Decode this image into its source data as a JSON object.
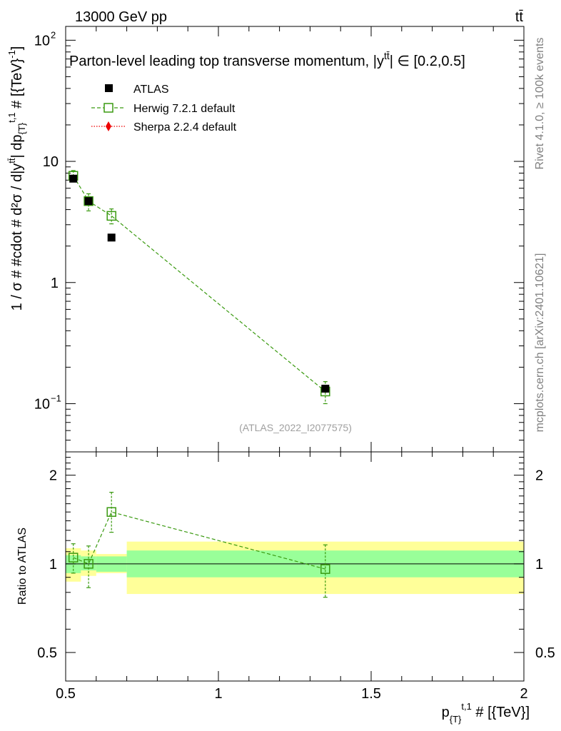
{
  "header": {
    "energy_label": "13000 GeV pp",
    "process_label": "tt̄"
  },
  "side_labels": {
    "rivet": "Rivet 4.1.0, ≥ 100k events",
    "mcplots": "mcplots.cern.ch [arXiv:2401.10621]"
  },
  "chart_data": {
    "type": "scatter",
    "title": "Parton-level leading top transverse momentum, |y^{tt̄}| ∈ [0.2,0.5]",
    "title_main": "Parton-level leading top transverse momentum, |y",
    "title_sup": "tt̄",
    "title_tail": "| ∈ [0.2,0.5]",
    "analysis_label": "(ATLAS_2022_I2077575)",
    "xlabel_main": "p",
    "xlabel_sub": "{T}",
    "xlabel_sup": "t,1",
    "xlabel_tail": " # [{TeV}]",
    "ylabel": "1 / σ # #cdot # d²σ / d|y^{tt̄}| dp_{T}^{t,1} # [{TeV}⁻¹]",
    "ylabel_text": "1 / σ # #cdot # d²σ / d|y",
    "ylabel_sup1": "tt̄",
    "ylabel_mid": "| dp",
    "ylabel_sub": "{T}",
    "ylabel_sup2": "t,1",
    "ylabel_tail": " # [{TeV}",
    "ylabel_sup3": "-1",
    "ylabel_end": "]",
    "ratio_ylabel": "Ratio to ATLAS",
    "xlim": [
      0.5,
      2.0
    ],
    "ylim": [
      0.04,
      130
    ],
    "yscale": "log",
    "ratio_ylim": [
      0.4,
      2.4
    ],
    "ratio_yscale": "log",
    "x_ticks": [
      {
        "value": 0.5,
        "label": "0.5"
      },
      {
        "value": 1.0,
        "label": "1"
      },
      {
        "value": 1.5,
        "label": "1.5"
      },
      {
        "value": 2.0,
        "label": "2"
      }
    ],
    "y_ticks": [
      {
        "value": 0.1,
        "base": "10",
        "exp": "−1"
      },
      {
        "value": 1,
        "base": "1",
        "exp": ""
      },
      {
        "value": 10,
        "base": "10",
        "exp": ""
      },
      {
        "value": 100,
        "base": "10",
        "exp": "2"
      }
    ],
    "ratio_ticks": [
      {
        "value": 0.5,
        "label": "0.5"
      },
      {
        "value": 1,
        "label": "1"
      },
      {
        "value": 2,
        "label": "2"
      }
    ],
    "legend": [
      {
        "name": "ATLAS",
        "style": "marker-square",
        "color": "#000000"
      },
      {
        "name": "Herwig 7.2.1 default",
        "style": "dashed-open-square",
        "color": "#3a9a10"
      },
      {
        "name": "Sherpa 2.2.4 default",
        "style": "dotted-diamond",
        "color": "#ee0000"
      }
    ],
    "bins": [
      {
        "xlow": 0.5,
        "xhigh": 0.55,
        "inner": [
          0.93,
          1.07
        ],
        "outer": [
          0.87,
          1.13
        ]
      },
      {
        "xlow": 0.55,
        "xhigh": 0.6,
        "inner": [
          0.95,
          1.06
        ],
        "outer": [
          0.91,
          1.11
        ]
      },
      {
        "xlow": 0.6,
        "xhigh": 0.7,
        "inner": [
          0.94,
          1.06
        ],
        "outer": [
          0.93,
          1.08
        ]
      },
      {
        "xlow": 0.7,
        "xhigh": 2.0,
        "inner": [
          0.9,
          1.11
        ],
        "outer": [
          0.79,
          1.19
        ]
      }
    ],
    "series": [
      {
        "name": "ATLAS",
        "color": "#000000",
        "x": [
          0.525,
          0.575,
          0.65,
          1.35
        ],
        "y": [
          7.2,
          4.7,
          2.35,
          0.133
        ]
      },
      {
        "name": "Herwig 7.2.1 default",
        "color": "#3a9a10",
        "x": [
          0.525,
          0.575,
          0.65,
          1.35
        ],
        "y": [
          7.6,
          4.7,
          3.55,
          0.126
        ],
        "yerr_low": [
          6.8,
          3.9,
          3.05,
          0.1
        ],
        "yerr_high": [
          8.4,
          5.4,
          4.05,
          0.152
        ],
        "ratio": [
          1.05,
          1.0,
          1.5,
          0.96
        ],
        "ratio_low": [
          0.93,
          0.83,
          1.28,
          0.77
        ],
        "ratio_high": [
          1.17,
          1.15,
          1.75,
          1.16
        ]
      },
      {
        "name": "Sherpa 2.2.4 default",
        "color": "#ee0000",
        "x": [],
        "y": []
      }
    ]
  }
}
